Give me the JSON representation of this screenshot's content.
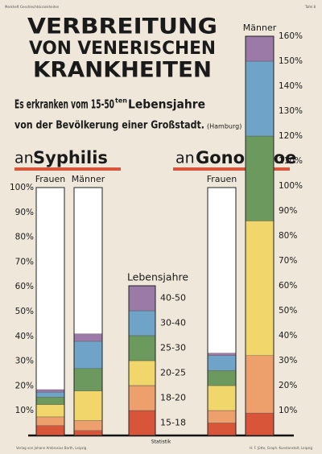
{
  "header": {
    "left_note": "Merkheft Geschlechtskrankheiten",
    "right_note": "Tafel 8",
    "title_lines": [
      "VERBREITUNG",
      "VON VENERISCHEN",
      "KRANKHEITEN"
    ],
    "subtitle_1a": "Es erkranken vom 15-50",
    "subtitle_1b": "ten",
    "subtitle_1c": "Lebensjahre",
    "subtitle_2a": "von der Bevölkerung einer Großstadt.",
    "subtitle_2b": "(Hamburg)"
  },
  "footer": {
    "center": "Statistik",
    "left": "Verlag von Johann Ambrosius Barth, Leipzig",
    "right": "H. F. Jütte, Graph. Kunstanstalt, Leipzig"
  },
  "chart_data": [
    {
      "type": "stacked-bar",
      "title_prefix": "an",
      "title": "Syphilis",
      "categories": [
        "Frauen",
        "Männer"
      ],
      "legend_title": "Lebensjahre",
      "series": [
        {
          "name": "15-18",
          "color": "#d9553a",
          "values": [
            4,
            2
          ]
        },
        {
          "name": "18-20",
          "color": "#eea06c",
          "values": [
            3.5,
            4
          ]
        },
        {
          "name": "20-25",
          "color": "#f0d66b",
          "values": [
            5,
            12
          ]
        },
        {
          "name": "25-30",
          "color": "#6c9a5e",
          "values": [
            3,
            9
          ]
        },
        {
          "name": "30-40",
          "color": "#6fa3c8",
          "values": [
            2,
            11
          ]
        },
        {
          "name": "40-50",
          "color": "#9b7aa8",
          "values": [
            1,
            3
          ]
        }
      ],
      "ylim": [
        0,
        100
      ],
      "yticks": [
        {
          "value": 10,
          "label": "10%"
        },
        {
          "value": 20,
          "label": "20%"
        },
        {
          "value": 30,
          "label": "30%"
        },
        {
          "value": 40,
          "label": "40%"
        },
        {
          "value": 50,
          "label": "50%"
        },
        {
          "value": 60,
          "label": "60%"
        },
        {
          "value": 70,
          "label": "70%"
        },
        {
          "value": 80,
          "label": "80%"
        },
        {
          "value": 90,
          "label": "90%"
        },
        {
          "value": 100,
          "label": "100%"
        }
      ]
    },
    {
      "type": "stacked-bar",
      "title_prefix": "an",
      "title": "Gonorrhoe",
      "categories": [
        "Frauen",
        "Männer"
      ],
      "series": [
        {
          "color": "#d9553a",
          "values": [
            5,
            9
          ]
        },
        {
          "color": "#eea06c",
          "values": [
            5,
            23
          ]
        },
        {
          "color": "#f0d66b",
          "values": [
            10,
            54
          ]
        },
        {
          "color": "#6c9a5e",
          "values": [
            6,
            34
          ]
        },
        {
          "color": "#6fa3c8",
          "values": [
            6,
            30
          ]
        },
        {
          "color": "#9b7aa8",
          "values": [
            1,
            10
          ]
        }
      ],
      "ylim": [
        0,
        160
      ],
      "yticks": [
        {
          "value": 10,
          "label": "10%"
        },
        {
          "value": 20,
          "label": "20%"
        },
        {
          "value": 30,
          "label": "30%"
        },
        {
          "value": 40,
          "label": "40%"
        },
        {
          "value": 50,
          "label": "50%"
        },
        {
          "value": 60,
          "label": "60%"
        },
        {
          "value": 70,
          "label": "70%"
        },
        {
          "value": 80,
          "label": "80%"
        },
        {
          "value": 90,
          "label": "90%"
        },
        {
          "value": 100,
          "label": "100%"
        },
        {
          "value": 110,
          "label": "110%"
        },
        {
          "value": 120,
          "label": "120%"
        },
        {
          "value": 130,
          "label": "130%"
        },
        {
          "value": 140,
          "label": "140%"
        },
        {
          "value": 150,
          "label": "150%"
        },
        {
          "value": 160,
          "label": "160%"
        }
      ]
    }
  ]
}
